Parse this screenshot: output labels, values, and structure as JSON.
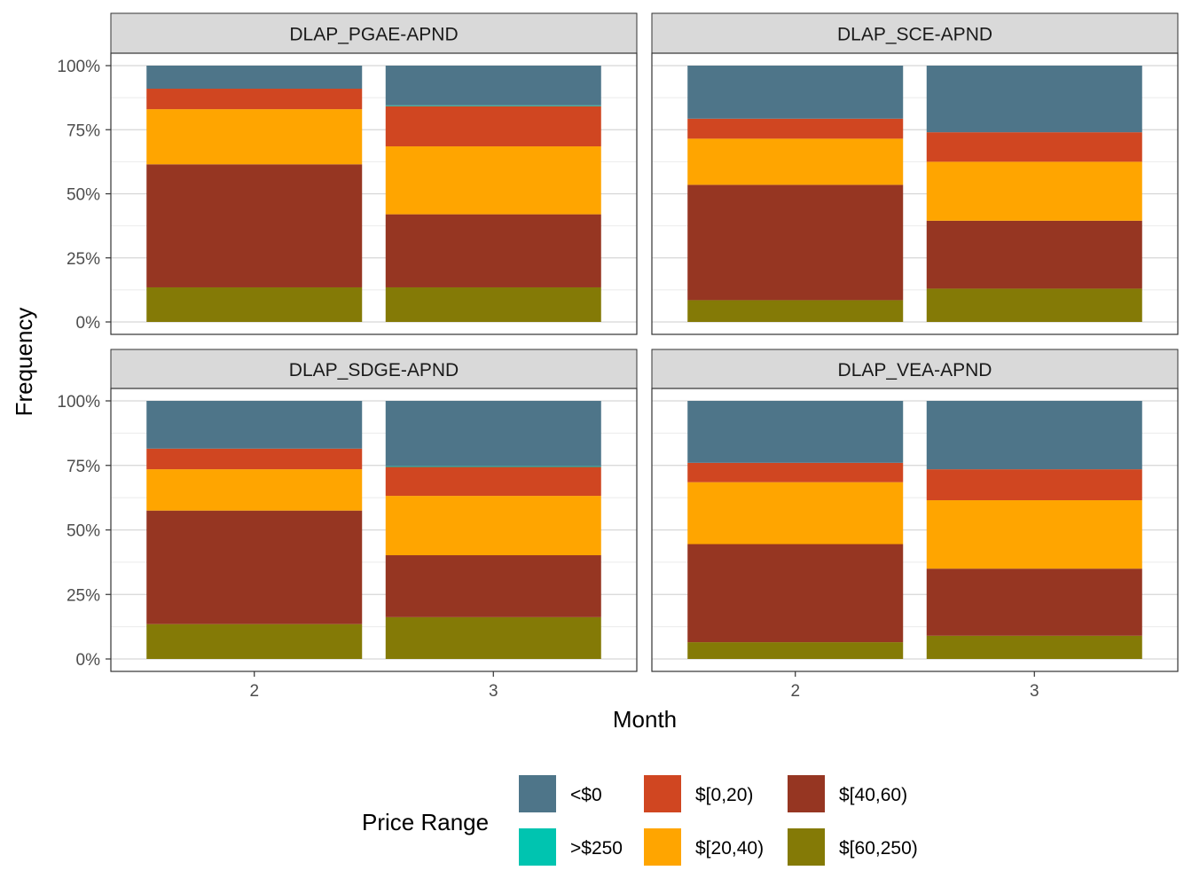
{
  "chart_data": {
    "type": "bar",
    "stacked": true,
    "normalized": true,
    "xlabel": "Month",
    "ylabel": "Frequency",
    "categories": [
      "2",
      "3"
    ],
    "ylim": [
      0,
      1
    ],
    "y_ticks": [
      "0%",
      "25%",
      "50%",
      "75%",
      "100%"
    ],
    "grid": true,
    "legend": {
      "title": "Price Range",
      "position": "bottom",
      "entries": [
        {
          "name": "<$0",
          "color": "#4E7589"
        },
        {
          "name": ">$250",
          "color": "#00C4B0"
        },
        {
          "name": "$[0,20)",
          "color": "#D04621"
        },
        {
          "name": "$[20,40)",
          "color": "#FFA500"
        },
        {
          "name": "$[40,60)",
          "color": "#963622"
        },
        {
          "name": "$[60,250)",
          "color": "#847A06"
        }
      ]
    },
    "stack_order_bottom_to_top": [
      "$[60,250)",
      "$[40,60)",
      "$[20,40)",
      "$[0,20)",
      ">$250",
      "<$0"
    ],
    "panels": [
      {
        "title": "DLAP_PGAE-APND",
        "series": [
          {
            "name": "$[60,250)",
            "values": [
              0.135,
              0.135
            ]
          },
          {
            "name": "$[40,60)",
            "values": [
              0.48,
              0.285
            ]
          },
          {
            "name": "$[20,40)",
            "values": [
              0.215,
              0.265
            ]
          },
          {
            "name": "$[0,20)",
            "values": [
              0.08,
              0.157
            ]
          },
          {
            "name": ">$250",
            "values": [
              0,
              0.003
            ]
          },
          {
            "name": "<$0",
            "values": [
              0.09,
              0.155
            ]
          }
        ]
      },
      {
        "title": "DLAP_SCE-APND",
        "series": [
          {
            "name": "$[60,250)",
            "values": [
              0.085,
              0.13
            ]
          },
          {
            "name": "$[40,60)",
            "values": [
              0.45,
              0.265
            ]
          },
          {
            "name": "$[20,40)",
            "values": [
              0.18,
              0.23
            ]
          },
          {
            "name": "$[0,20)",
            "values": [
              0.078,
              0.115
            ]
          },
          {
            "name": ">$250",
            "values": [
              0,
              0
            ]
          },
          {
            "name": "<$0",
            "values": [
              0.207,
              0.26
            ]
          }
        ]
      },
      {
        "title": "DLAP_SDGE-APND",
        "series": [
          {
            "name": "$[60,250)",
            "values": [
              0.135,
              0.162
            ]
          },
          {
            "name": "$[40,60)",
            "values": [
              0.44,
              0.24
            ]
          },
          {
            "name": "$[20,40)",
            "values": [
              0.16,
              0.23
            ]
          },
          {
            "name": "$[0,20)",
            "values": [
              0.08,
              0.112
            ]
          },
          {
            "name": ">$250",
            "values": [
              0,
              0.003
            ]
          },
          {
            "name": "<$0",
            "values": [
              0.185,
              0.253
            ]
          }
        ]
      },
      {
        "title": "DLAP_VEA-APND",
        "series": [
          {
            "name": "$[60,250)",
            "values": [
              0.065,
              0.09
            ]
          },
          {
            "name": "$[40,60)",
            "values": [
              0.38,
              0.26
            ]
          },
          {
            "name": "$[20,40)",
            "values": [
              0.24,
              0.265
            ]
          },
          {
            "name": "$[0,20)",
            "values": [
              0.075,
              0.12
            ]
          },
          {
            "name": ">$250",
            "values": [
              0,
              0
            ]
          },
          {
            "name": "<$0",
            "values": [
              0.24,
              0.265
            ]
          }
        ]
      }
    ]
  }
}
